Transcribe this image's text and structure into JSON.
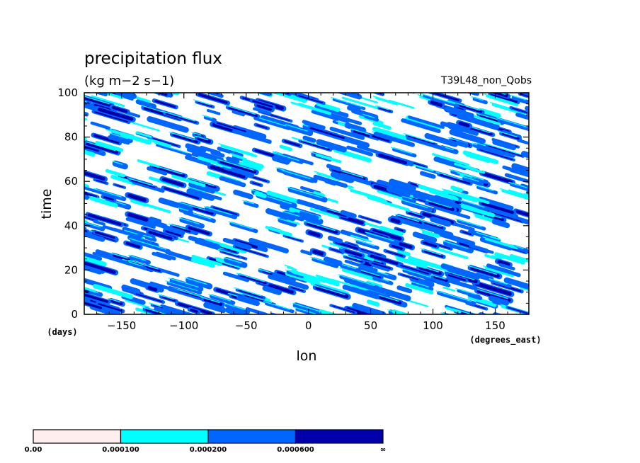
{
  "chart_data": {
    "type": "heatmap",
    "title": "precipitation flux",
    "units": "(kg m−2 s−1)",
    "experiment": "T39L48_non_Qobs",
    "xlabel": "lon",
    "ylabel": "time",
    "x_units": "(degrees_east)",
    "y_units": "(days)",
    "xlim": [
      -180,
      177
    ],
    "ylim": [
      0,
      100
    ],
    "x_ticks": [
      -150,
      -100,
      -50,
      0,
      50,
      100,
      150
    ],
    "y_ticks": [
      0,
      20,
      40,
      60,
      80,
      100
    ],
    "x_tick_labels": [
      "−150",
      "−100",
      "−50",
      "0",
      "50",
      "100",
      "150"
    ],
    "y_tick_labels": [
      "0",
      "20",
      "40",
      "60",
      "80",
      "100"
    ],
    "grid": false,
    "colorbar": {
      "levels": [
        0.0,
        0.0001,
        0.0002,
        0.0006
      ],
      "labels": [
        "0.00",
        "0.000100",
        "0.000200",
        "0.000600",
        "∞"
      ],
      "colors": [
        "#ffeeee",
        "#00ffff",
        "#0066ff",
        "#0000aa"
      ],
      "position": "bottom-left"
    },
    "pattern": {
      "description_free": true,
      "seed": 7,
      "n_streaks": 720,
      "eastward_phase_speed_deg_per_day": -6
    }
  }
}
